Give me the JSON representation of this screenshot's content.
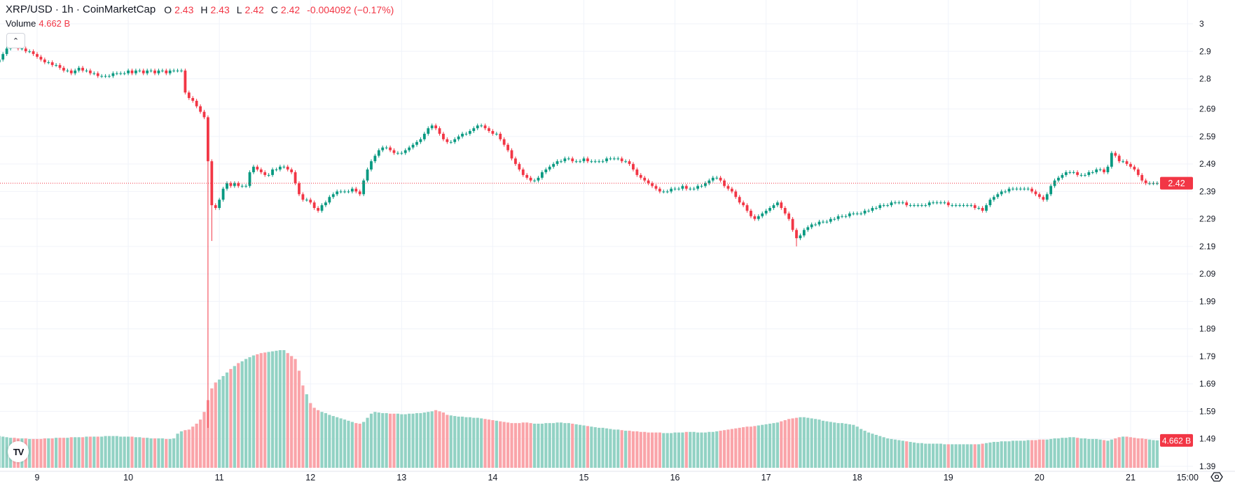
{
  "legend": {
    "symbol": "XRP/USD · 1h · CoinMarketCap",
    "o_label": "O",
    "o": "2.43",
    "h_label": "H",
    "h": "2.43",
    "l_label": "L",
    "l": "2.42",
    "c_label": "C",
    "c": "2.42",
    "change": "-0.004092 (−0.17%)",
    "volume_label": "Volume",
    "volume_value": "4.662 B"
  },
  "icons": {
    "collapse": "chevron-up-icon",
    "logo": "tradingview-logo",
    "settings": "gear-icon"
  },
  "logo_text": "TV",
  "colors": {
    "up": "#089981",
    "down": "#F23645",
    "up_volume": "#92d2c4",
    "down_volume": "#faa4a9",
    "grid": "#f0f3fa"
  },
  "chart_data": {
    "type": "candlestick",
    "interval": "1h",
    "first_candle": "8 14:00",
    "ylim": [
      1.39,
      3.0
    ],
    "y_ticks": [
      "3",
      "2.9",
      "2.8",
      "2.69",
      "2.59",
      "2.49",
      "2.39",
      "2.29",
      "2.19",
      "2.09",
      "1.99",
      "1.89",
      "1.79",
      "1.69",
      "1.59",
      "1.49",
      "1.39"
    ],
    "x_ticks": [
      "9",
      "10",
      "11",
      "12",
      "13",
      "14",
      "15",
      "16",
      "17",
      "18",
      "19",
      "20",
      "21",
      "15:00"
    ],
    "last_price": 2.42,
    "last_price_label": "2.42",
    "last_volume_label": "4.662 B",
    "grid": true,
    "close": [
      2.87,
      2.89,
      2.91,
      2.93,
      2.92,
      2.91,
      2.91,
      2.9,
      2.9,
      2.89,
      2.88,
      2.87,
      2.86,
      2.86,
      2.85,
      2.85,
      2.84,
      2.83,
      2.83,
      2.82,
      2.83,
      2.84,
      2.83,
      2.83,
      2.82,
      2.82,
      2.81,
      2.81,
      2.81,
      2.81,
      2.82,
      2.82,
      2.82,
      2.82,
      2.83,
      2.82,
      2.83,
      2.83,
      2.82,
      2.83,
      2.83,
      2.82,
      2.83,
      2.83,
      2.82,
      2.83,
      2.83,
      2.83,
      2.83,
      2.75,
      2.73,
      2.72,
      2.7,
      2.68,
      2.66,
      2.5,
      2.34,
      2.33,
      2.36,
      2.4,
      2.42,
      2.41,
      2.42,
      2.41,
      2.41,
      2.41,
      2.46,
      2.48,
      2.47,
      2.46,
      2.45,
      2.45,
      2.47,
      2.47,
      2.48,
      2.48,
      2.47,
      2.46,
      2.42,
      2.38,
      2.36,
      2.36,
      2.35,
      2.33,
      2.32,
      2.34,
      2.35,
      2.37,
      2.38,
      2.39,
      2.39,
      2.39,
      2.39,
      2.4,
      2.39,
      2.38,
      2.43,
      2.47,
      2.5,
      2.52,
      2.54,
      2.55,
      2.55,
      2.54,
      2.53,
      2.53,
      2.53,
      2.54,
      2.55,
      2.56,
      2.57,
      2.58,
      2.6,
      2.62,
      2.63,
      2.62,
      2.6,
      2.58,
      2.57,
      2.57,
      2.58,
      2.59,
      2.6,
      2.6,
      2.61,
      2.62,
      2.63,
      2.63,
      2.62,
      2.61,
      2.6,
      2.6,
      2.58,
      2.56,
      2.54,
      2.51,
      2.49,
      2.47,
      2.45,
      2.44,
      2.43,
      2.43,
      2.44,
      2.46,
      2.47,
      2.48,
      2.49,
      2.5,
      2.5,
      2.51,
      2.51,
      2.5,
      2.5,
      2.5,
      2.51,
      2.5,
      2.5,
      2.5,
      2.5,
      2.5,
      2.51,
      2.51,
      2.51,
      2.51,
      2.5,
      2.5,
      2.49,
      2.47,
      2.45,
      2.44,
      2.43,
      2.42,
      2.41,
      2.4,
      2.39,
      2.39,
      2.39,
      2.4,
      2.4,
      2.4,
      2.41,
      2.4,
      2.4,
      2.4,
      2.41,
      2.41,
      2.42,
      2.43,
      2.44,
      2.44,
      2.43,
      2.41,
      2.4,
      2.39,
      2.37,
      2.35,
      2.34,
      2.32,
      2.3,
      2.29,
      2.3,
      2.31,
      2.32,
      2.33,
      2.34,
      2.35,
      2.33,
      2.31,
      2.29,
      2.25,
      2.22,
      2.23,
      2.25,
      2.26,
      2.27,
      2.27,
      2.28,
      2.28,
      2.28,
      2.29,
      2.29,
      2.3,
      2.3,
      2.3,
      2.31,
      2.31,
      2.31,
      2.31,
      2.32,
      2.32,
      2.33,
      2.33,
      2.34,
      2.34,
      2.34,
      2.35,
      2.35,
      2.35,
      2.35,
      2.34,
      2.34,
      2.34,
      2.34,
      2.34,
      2.34,
      2.35,
      2.35,
      2.35,
      2.35,
      2.35,
      2.34,
      2.34,
      2.34,
      2.34,
      2.34,
      2.34,
      2.34,
      2.33,
      2.33,
      2.32,
      2.34,
      2.36,
      2.37,
      2.38,
      2.39,
      2.39,
      2.4,
      2.4,
      2.4,
      2.4,
      2.4,
      2.4,
      2.39,
      2.38,
      2.37,
      2.36,
      2.38,
      2.41,
      2.43,
      2.44,
      2.45,
      2.46,
      2.46,
      2.46,
      2.45,
      2.45,
      2.45,
      2.46,
      2.46,
      2.47,
      2.47,
      2.46,
      2.48,
      2.53,
      2.52,
      2.5,
      2.5,
      2.49,
      2.48,
      2.47,
      2.45,
      2.43,
      2.42,
      2.42,
      2.42,
      2.42
    ],
    "notable_lows": {
      "10 21:00": 1.53,
      "10 22:00": 2.21,
      "17 08:00": 2.19
    },
    "volume_unit": "B",
    "volume": [
      5.4,
      5.3,
      5.2,
      5.1,
      5.1,
      5.0,
      5.0,
      5.0,
      4.9,
      4.9,
      4.9,
      4.9,
      5.0,
      5.0,
      5.0,
      5.1,
      5.1,
      5.1,
      5.1,
      5.2,
      5.2,
      5.2,
      5.2,
      5.3,
      5.3,
      5.3,
      5.3,
      5.3,
      5.4,
      5.4,
      5.4,
      5.4,
      5.3,
      5.3,
      5.3,
      5.3,
      5.2,
      5.2,
      5.1,
      5.1,
      5.0,
      5.0,
      5.0,
      5.0,
      4.9,
      4.9,
      5.0,
      5.8,
      6.2,
      6.4,
      6.5,
      7.0,
      7.5,
      8.2,
      9.5,
      11.5,
      13.5,
      14.5,
      15.0,
      15.6,
      16.2,
      16.8,
      17.3,
      17.8,
      18.1,
      18.5,
      18.8,
      19.1,
      19.3,
      19.5,
      19.6,
      19.7,
      19.8,
      19.9,
      20.0,
      20.0,
      19.5,
      19.0,
      18.5,
      16.5,
      14.0,
      12.5,
      11.0,
      10.2,
      9.8,
      9.5,
      9.3,
      9.0,
      8.8,
      8.6,
      8.4,
      8.2,
      8.0,
      7.8,
      7.6,
      7.5,
      7.8,
      8.5,
      9.2,
      9.5,
      9.4,
      9.3,
      9.3,
      9.2,
      9.2,
      9.2,
      9.1,
      9.1,
      9.2,
      9.2,
      9.3,
      9.3,
      9.4,
      9.5,
      9.6,
      9.8,
      9.6,
      9.4,
      9.0,
      8.9,
      8.8,
      8.7,
      8.7,
      8.6,
      8.6,
      8.5,
      8.5,
      8.4,
      8.3,
      8.2,
      8.1,
      8.0,
      7.9,
      7.8,
      7.7,
      7.6,
      7.6,
      7.6,
      7.7,
      7.7,
      7.6,
      7.5,
      7.5,
      7.5,
      7.6,
      7.6,
      7.6,
      7.7,
      7.7,
      7.6,
      7.6,
      7.5,
      7.4,
      7.3,
      7.2,
      7.1,
      7.0,
      6.9,
      6.8,
      6.8,
      6.7,
      6.6,
      6.5,
      6.5,
      6.4,
      6.3,
      6.3,
      6.2,
      6.2,
      6.1,
      6.1,
      6.0,
      6.0,
      6.0,
      6.0,
      5.9,
      5.9,
      5.9,
      6.0,
      6.0,
      6.0,
      6.1,
      6.1,
      6.1,
      6.0,
      6.0,
      6.0,
      6.1,
      6.1,
      6.2,
      6.3,
      6.4,
      6.5,
      6.6,
      6.7,
      6.8,
      6.9,
      7.0,
      7.0,
      7.1,
      7.2,
      7.3,
      7.4,
      7.5,
      7.6,
      7.7,
      7.9,
      8.1,
      8.3,
      8.4,
      8.5,
      8.6,
      8.6,
      8.5,
      8.4,
      8.3,
      8.2,
      8.0,
      7.9,
      7.8,
      7.7,
      7.6,
      7.6,
      7.5,
      7.4,
      7.3,
      7.0,
      6.6,
      6.3,
      6.0,
      5.8,
      5.6,
      5.4,
      5.2,
      5.0,
      4.9,
      4.8,
      4.7,
      4.6,
      4.5,
      4.4,
      4.3,
      4.2,
      4.2,
      4.1,
      4.1,
      4.1,
      4.1,
      4.1,
      4.0,
      4.0,
      4.0,
      4.0,
      4.0,
      4.0,
      4.0,
      4.0,
      4.0,
      4.0,
      4.1,
      4.2,
      4.3,
      4.4,
      4.4,
      4.5,
      4.5,
      4.5,
      4.6,
      4.6,
      4.6,
      4.6,
      4.7,
      4.7,
      4.7,
      4.8,
      4.8,
      4.8,
      4.9,
      5.0,
      5.0,
      5.1,
      5.1,
      5.2,
      5.2,
      5.1,
      5.0,
      5.0,
      4.9,
      4.9,
      4.9,
      4.8,
      4.7,
      4.6,
      4.8,
      5.0,
      5.2,
      5.3,
      5.3,
      5.2,
      5.1,
      5.0,
      5.0,
      4.9,
      4.8,
      4.7,
      4.662
    ]
  }
}
